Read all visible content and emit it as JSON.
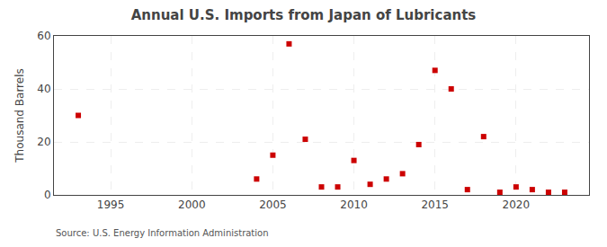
{
  "chart_data": {
    "type": "scatter",
    "title": "Annual U.S. Imports from Japan of Lubricants",
    "ylabel": "Thousand Barrels",
    "annotations": [
      "Source: U.S. Energy Information Administration"
    ],
    "x": [
      1993,
      2004,
      2005,
      2006,
      2007,
      2008,
      2009,
      2010,
      2011,
      2012,
      2013,
      2014,
      2015,
      2016,
      2017,
      2018,
      2019,
      2020,
      2021,
      2022,
      2023
    ],
    "values": [
      30,
      6,
      15,
      57,
      21,
      3,
      3,
      13,
      4,
      6,
      8,
      19,
      47,
      40,
      2,
      22,
      1,
      3,
      2,
      1,
      1
    ],
    "color": "#cc0000",
    "marker": "square",
    "xlim": [
      1991.5,
      2024.5
    ],
    "xticks": [
      1995,
      2000,
      2005,
      2010,
      2015,
      2020
    ],
    "ylim": [
      0,
      60
    ],
    "yticks": [
      0,
      20,
      40,
      60
    ],
    "grid": true
  }
}
